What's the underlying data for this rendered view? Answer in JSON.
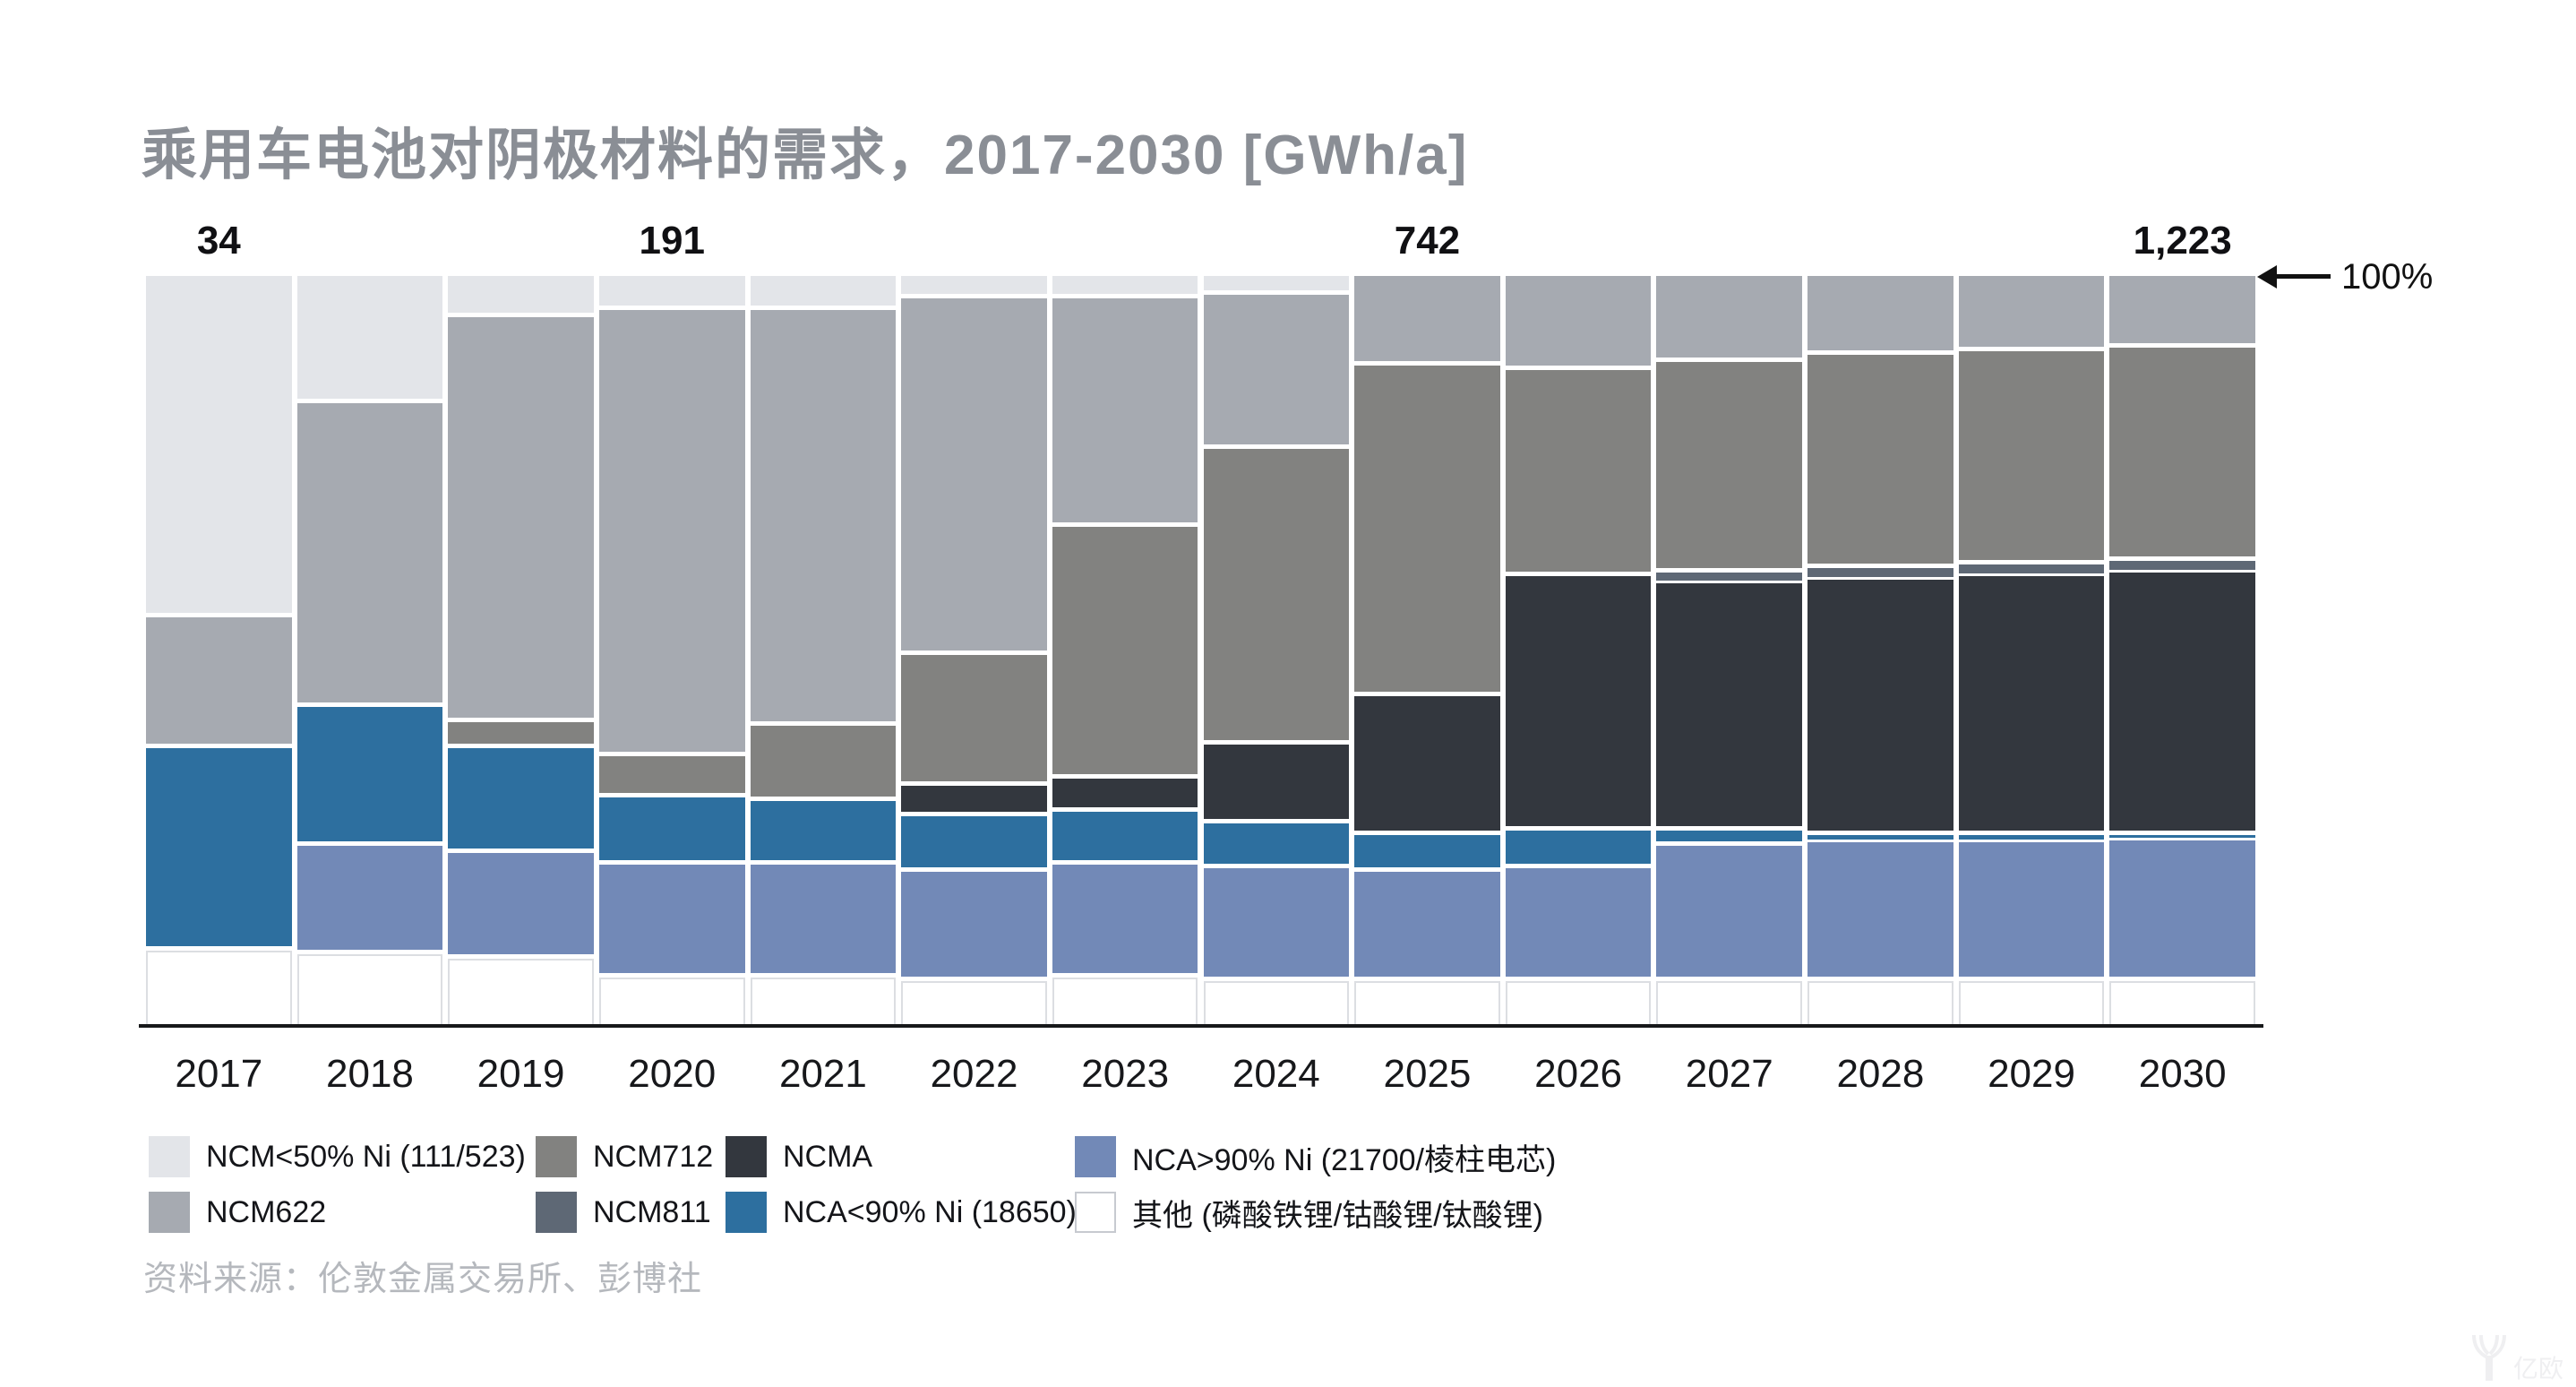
{
  "title": "乘用车电池对阴极材料的需求，2017-2030 [GWh/a]",
  "axis_annotation": "100%",
  "source": "资料来源：伦敦金属交易所、彭博社",
  "watermark": "亿欧",
  "colors": {
    "title_text": "#8a8e95",
    "axis": "#17181a",
    "value_labels": "#101013",
    "source_text": "#b5b8bd"
  },
  "chart_data": {
    "type": "bar",
    "stacked": true,
    "normalized": "percent",
    "title": "乘用车电池对阴极材料的需求，2017-2030 [GWh/a]",
    "xlabel": "",
    "ylabel": "",
    "ylim": [
      0,
      100
    ],
    "grid": false,
    "legend_position": "bottom",
    "categories": [
      "2017",
      "2018",
      "2019",
      "2020",
      "2021",
      "2022",
      "2023",
      "2024",
      "2025",
      "2026",
      "2027",
      "2028",
      "2029",
      "2030"
    ],
    "totals_gwh": [
      {
        "category": "2017",
        "label": "34"
      },
      {
        "category": "2020",
        "label": "191"
      },
      {
        "category": "2025",
        "label": "742"
      },
      {
        "category": "2030",
        "label": "1,223"
      }
    ],
    "series": [
      {
        "key": "ncm-lt50",
        "name": "NCM<50% Ni (111/523)",
        "color": "#e3e5e9",
        "values": [
          45.5,
          17,
          5.5,
          4.5,
          4.5,
          3,
          3,
          2.5,
          0,
          0,
          0,
          0,
          0,
          0
        ]
      },
      {
        "key": "ncm622",
        "name": "NCM622",
        "color": "#a6aab1",
        "values": [
          17.5,
          40.5,
          54,
          59.5,
          55.5,
          47.5,
          30.5,
          20.5,
          12,
          12.5,
          11.5,
          10.5,
          10,
          9.5
        ]
      },
      {
        "key": "ncm712",
        "name": "NCM712",
        "color": "#828280",
        "values": [
          0,
          0,
          3.5,
          5.5,
          10,
          17.5,
          33.5,
          39.5,
          44,
          27.5,
          28,
          28.5,
          28.5,
          28.5
        ]
      },
      {
        "key": "ncm811",
        "name": "NCM811",
        "color": "#5e6875",
        "values": [
          0,
          0,
          0,
          0,
          0,
          0,
          0,
          0,
          0,
          0,
          1.5,
          1.5,
          1.5,
          1.5
        ]
      },
      {
        "key": "ncma",
        "name": "NCMA",
        "color": "#33373e",
        "values": [
          0,
          0,
          0,
          0,
          0,
          4,
          4.5,
          10.5,
          18.5,
          34,
          33,
          34,
          34.5,
          35
        ]
      },
      {
        "key": "nca-lt90",
        "name": "NCA<90% Ni (18650)",
        "color": "#2d6f9f",
        "values": [
          27,
          18.5,
          14,
          9,
          8.5,
          7.5,
          7,
          6,
          5,
          5,
          2,
          1,
          1,
          0.8
        ]
      },
      {
        "key": "nca-gt90",
        "name": "NCA>90% Ni (21700/棱柱电芯)",
        "color": "#7289b7",
        "values": [
          0,
          14.5,
          14,
          15,
          15,
          14.5,
          15,
          15,
          14.5,
          15,
          18,
          18.5,
          18.5,
          18.7
        ]
      },
      {
        "key": "other",
        "name": "其他 (磷酸铁锂/钴酸锂/钛酸锂)",
        "color": "#ffffff",
        "values": [
          10,
          9.5,
          9,
          6.5,
          6.5,
          6,
          6.5,
          6,
          6,
          6,
          6,
          6,
          6,
          6
        ]
      }
    ],
    "legend_columns": [
      [
        0,
        1
      ],
      [
        2,
        3
      ],
      [
        4,
        5
      ],
      [
        6,
        7
      ]
    ]
  }
}
